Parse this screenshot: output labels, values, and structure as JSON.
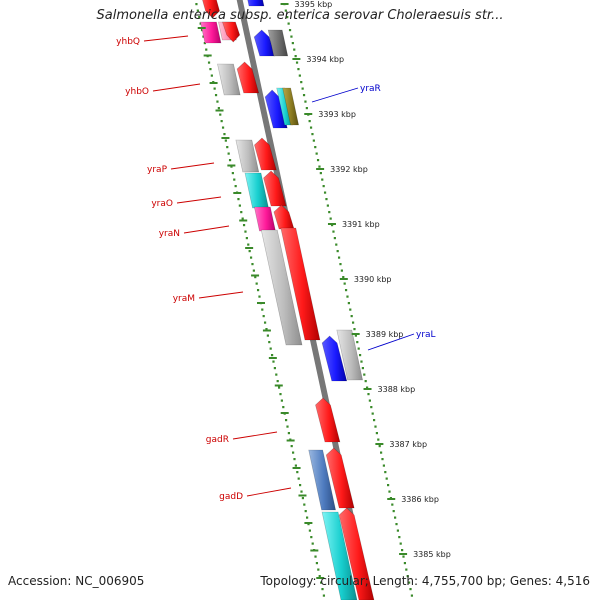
{
  "title": "Salmonella enterica subsp. enterica serovar Choleraesuis str...",
  "footer": {
    "accession": "Accession: NC_006905",
    "topology": "Topology: circular; Length: 4,755,700 bp; Genes: 4,516"
  },
  "colors": {
    "backbone": "#777777",
    "frame": "#3a8a2a",
    "forward_label": "#cc0000",
    "reverse_label": "#0000cc"
  },
  "ticks": [
    {
      "kbp": 3395,
      "label": "3395 kbp"
    },
    {
      "kbp": 3394,
      "label": "3394 kbp"
    },
    {
      "kbp": 3393,
      "label": "3393 kbp"
    },
    {
      "kbp": 3392,
      "label": "3392 kbp"
    },
    {
      "kbp": 3391,
      "label": "3391 kbp"
    },
    {
      "kbp": 3390,
      "label": "3390 kbp"
    },
    {
      "kbp": 3389,
      "label": "3389 kbp"
    },
    {
      "kbp": 3388,
      "label": "3388 kbp"
    },
    {
      "kbp": 3387,
      "label": "3387 kbp"
    },
    {
      "kbp": 3386,
      "label": "3386 kbp"
    },
    {
      "kbp": 3385,
      "label": "3385 kbp"
    }
  ],
  "labels": [
    {
      "name": "yhbQ",
      "strand": "forward"
    },
    {
      "name": "yhbO",
      "strand": "forward"
    },
    {
      "name": "yraR",
      "strand": "reverse"
    },
    {
      "name": "yraP",
      "strand": "forward"
    },
    {
      "name": "yraO",
      "strand": "forward"
    },
    {
      "name": "yraN",
      "strand": "forward"
    },
    {
      "name": "yraM",
      "strand": "forward"
    },
    {
      "name": "yraL",
      "strand": "reverse"
    },
    {
      "name": "gadR",
      "strand": "forward"
    },
    {
      "name": "gadD",
      "strand": "forward"
    }
  ]
}
